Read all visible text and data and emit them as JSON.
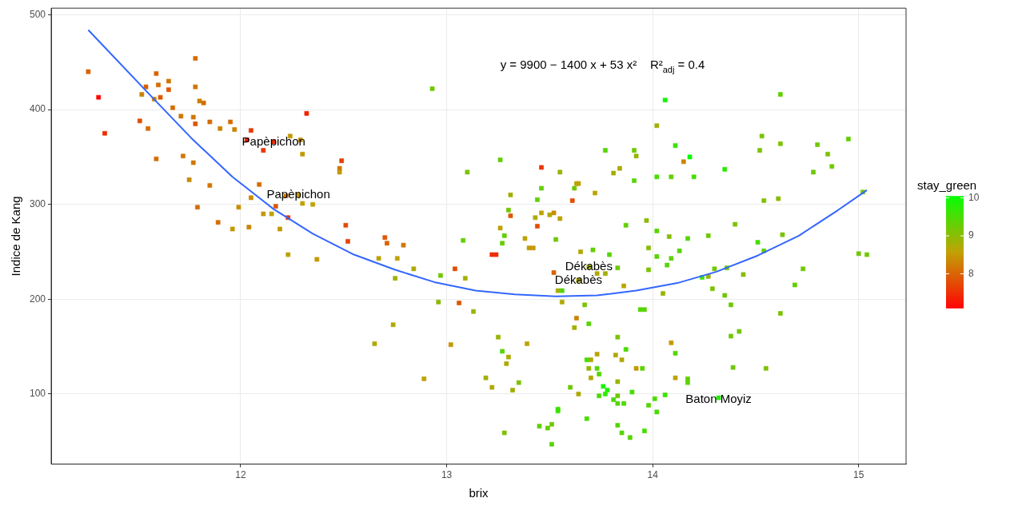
{
  "chart_data": {
    "type": "scatter",
    "xlabel": "brix",
    "ylabel": "Indice de Kang",
    "clabel": "stay_green",
    "xlim": [
      11.08,
      15.23
    ],
    "ylim": [
      26,
      507
    ],
    "xticks": [
      12,
      13,
      14,
      15
    ],
    "yticks": [
      100,
      200,
      300,
      400,
      500
    ],
    "clim": [
      7.1,
      10.05
    ],
    "cticks": [
      8,
      9,
      10
    ],
    "grid": true,
    "annotations": [
      "y = 9900 − 1400 x + 53 x²    R²$_{adj}$ = 0.4",
      {
        "text": "Papèpichon",
        "x": 12.16,
        "y": 366
      },
      {
        "text": "Papèpichon",
        "x": 12.28,
        "y": 310
      },
      {
        "text": "Dékabès",
        "x": 13.69,
        "y": 234
      },
      {
        "text": "Dékabès",
        "x": 13.64,
        "y": 220
      },
      {
        "text": "Baton Moyiz",
        "x": 14.32,
        "y": 94
      }
    ],
    "series": [
      {
        "marker": "square",
        "colors": [
          "#c39800",
          "#a3ae00",
          "#b0a800",
          "#d96200",
          "#ff0000",
          "#ee2b00",
          "#d46c00",
          "#d96200",
          "#cc8200",
          "#d46c00",
          "#d96200",
          "#d07700",
          "#dd5700",
          "#cc8200",
          "#dd5700",
          "#d46c00",
          "#d07700",
          "#d07700",
          "#dd5700",
          "#d46c00",
          "#cc8200",
          "#d46c00",
          "#cc8200",
          "#ea3600",
          "#d07700",
          "#cc8200",
          "#d46c00",
          "#e14c00",
          "#d46c00",
          "#d46c00",
          "#d07700",
          "#d07700",
          "#c78d00",
          "#d07700",
          "#d46c00",
          "#c78d00",
          "#d46c00",
          "#c39800",
          "#cc8200",
          "#c39800",
          "#bda200",
          "#c39800",
          "#ea3600",
          "#dd5700",
          "#d46c00",
          "#c78d00",
          "#bda200",
          "#c39800",
          "#f22100",
          "#ea3600",
          "#f22100",
          "#ee2b00",
          "#c39800",
          "#c78d00",
          "#c39800",
          "#e54100",
          "#d07700",
          "#c39800",
          "#e14c00",
          "#e54100",
          "#bda200",
          "#bda200",
          "#d07700",
          "#dd5700",
          "#d96200",
          "#d07700",
          "#bda200",
          "#bda200",
          "#a3ae00",
          "#b0a800",
          "#b0a800",
          "#6fc800",
          "#e14c00",
          "#a3ae00",
          "#89bb00",
          "#dd5700",
          "#96b500",
          "#7cc200",
          "#62cf00",
          "#ea3600",
          "#96b500",
          "#a3ae00",
          "#62cf00",
          "#62cf00",
          "#6fc800",
          "#dd5700",
          "#b0a800",
          "#bda200",
          "#b0a800",
          "#c78d00",
          "#bda200",
          "#e14c00",
          "#bda200",
          "#62cf00",
          "#62cf00",
          "#bda200",
          "#c39800",
          "#c39800",
          "#ee2b00",
          "#ee2b00",
          "#62cf00",
          "#6fc800",
          "#e14c00",
          "#6fc800",
          "#bda200",
          "#bda200",
          "#bda200",
          "#b0a800",
          "#62cf00",
          "#d96200",
          "#a3ae00",
          "#55d500",
          "#b0a800",
          "#7cc200",
          "#cc8200",
          "#55d500",
          "#a3ae00",
          "#6fc800",
          "#bda200",
          "#b0a800",
          "#96b500",
          "#c39800",
          "#bda200",
          "#55d500",
          "#b0a800",
          "#b0a800",
          "#a3ae00",
          "#b0a800",
          "#a3ae00",
          "#7cc200",
          "#7cc200",
          "#7cc200",
          "#55d500",
          "#55d500",
          "#48dc00",
          "#bda200",
          "#b0a800",
          "#b0a800",
          "#b0a800",
          "#48dc00",
          "#96b500",
          "#55d500",
          "#55d500",
          "#b0a800",
          "#c39800",
          "#55d500",
          "#96b500",
          "#14f500",
          "#21ef00",
          "#2ee800",
          "#48dc00",
          "#6fc800",
          "#48dc00",
          "#55d500",
          "#48dc00",
          "#48dc00",
          "#6fc800",
          "#b0a800",
          "#c39800",
          "#55d500",
          "#bda200",
          "#62cf00",
          "#62cf00",
          "#3be200",
          "#48dc00",
          "#55d500",
          "#48dc00",
          "#3be200",
          "#3be200",
          "#48dc00",
          "#62cf00",
          "#62cf00",
          "#6fc800",
          "#55d500",
          "#55d500",
          "#55d500",
          "#55d500",
          "#48dc00",
          "#21ef00",
          "#14f500",
          "#62cf00",
          "#a3ae00",
          "#3be200",
          "#07fc00",
          "#cc8200",
          "#48dc00",
          "#62cf00",
          "#48dc00",
          "#2ee800",
          "#55d500",
          "#6fc800",
          "#96b500",
          "#a3ae00",
          "#b0a800",
          "#55d500",
          "#7cc200",
          "#7cc200",
          "#7cc200",
          "#6fc800",
          "#7cc200",
          "#6fc800",
          "#6fc800",
          "#62cf00",
          "#7cc200",
          "#89bb00",
          "#6fc800",
          "#62cf00",
          "#89bb00",
          "#55d500",
          "#89bb00",
          "#55d500",
          "#6fc800",
          "#7cc200",
          "#48dc00",
          "#7cc200",
          "#62cf00",
          "#89bb00",
          "#55d500",
          "#62cf00",
          "#55d500",
          "#55d500",
          "#7cc200",
          "#55d500",
          "#6fc800",
          "#a3ae00",
          "#b0a800",
          "#bda200",
          "#96b500",
          "#6fc800",
          "#6fc800",
          "#96b500",
          "#3be200",
          "#89bb00",
          "#7cc200",
          "#6fc800",
          "#6fc800",
          "#7cc200",
          "#6fc800",
          "#62cf00",
          "#6fc800",
          "#6fc800",
          "#6fc800",
          "#6fc800",
          "#6fc800",
          "#7cc200"
        ],
        "x": [
          12.28,
          13.69,
          13.64,
          11.26,
          11.31,
          11.34,
          11.78,
          11.54,
          11.52,
          11.6,
          11.59,
          11.65,
          11.65,
          11.58,
          11.61,
          11.67,
          11.71,
          11.77,
          11.78,
          11.85,
          11.9,
          11.95,
          11.97,
          12.05,
          11.78,
          11.8,
          11.82,
          11.51,
          11.55,
          11.59,
          11.72,
          11.77,
          11.75,
          11.85,
          11.79,
          11.99,
          11.89,
          11.96,
          12.04,
          12.11,
          12.15,
          12.19,
          12.23,
          12.17,
          12.09,
          12.05,
          12.23,
          12.37,
          12.32,
          12.11,
          12.03,
          12.16,
          12.24,
          12.29,
          12.3,
          12.49,
          12.48,
          12.48,
          12.51,
          12.52,
          12.3,
          12.35,
          12.22,
          12.7,
          12.71,
          12.79,
          12.67,
          12.76,
          12.75,
          12.74,
          12.84,
          12.97,
          13.04,
          13.09,
          12.96,
          13.06,
          13.13,
          13.1,
          13.26,
          13.46,
          13.55,
          13.31,
          13.46,
          13.44,
          13.3,
          13.31,
          13.43,
          13.46,
          13.5,
          13.52,
          13.55,
          13.44,
          13.26,
          13.28,
          13.27,
          13.38,
          13.4,
          13.42,
          13.22,
          13.24,
          13.08,
          13.53,
          13.61,
          13.62,
          13.63,
          13.64,
          13.72,
          13.65,
          13.71,
          13.52,
          13.54,
          13.56,
          13.56,
          13.67,
          13.63,
          13.69,
          13.62,
          12.93,
          12.89,
          12.65,
          13.25,
          13.02,
          13.39,
          13.27,
          13.3,
          13.29,
          13.19,
          13.22,
          13.32,
          13.35,
          13.28,
          13.83,
          13.94,
          13.96,
          13.87,
          13.73,
          13.82,
          13.85,
          13.7,
          13.68,
          13.69,
          13.73,
          13.74,
          13.7,
          13.92,
          13.95,
          13.83,
          13.76,
          13.78,
          13.77,
          13.74,
          13.83,
          13.81,
          13.83,
          13.86,
          13.9,
          13.6,
          13.64,
          14.09,
          14.11,
          14.11,
          14.17,
          14.17,
          14.06,
          14.01,
          13.98,
          14.02,
          13.54,
          13.54,
          13.68,
          13.45,
          13.49,
          13.51,
          13.51,
          13.83,
          13.85,
          13.89,
          13.96,
          14.32,
          14.06,
          14.62,
          14.02,
          14.11,
          14.18,
          14.15,
          14.02,
          14.09,
          14.2,
          14.35,
          13.77,
          13.91,
          13.92,
          13.81,
          13.84,
          13.91,
          14.53,
          14.52,
          14.62,
          14.8,
          14.85,
          14.87,
          14.78,
          14.95,
          14.54,
          14.61,
          15.02,
          13.87,
          13.97,
          14.02,
          14.08,
          14.17,
          14.27,
          14.4,
          14.51,
          14.63,
          14.54,
          13.98,
          14.02,
          14.09,
          14.13,
          14.07,
          13.98,
          13.79,
          13.83,
          13.77,
          13.73,
          13.86,
          14.05,
          14.3,
          14.36,
          14.27,
          14.24,
          14.44,
          14.29,
          14.35,
          14.38,
          14.62,
          14.73,
          14.69,
          15.0,
          15.04,
          14.42,
          14.38,
          14.39,
          14.55
        ],
        "values": [
          310,
          234,
          220,
          440,
          413,
          375,
          454,
          424,
          416,
          426,
          438,
          430,
          421,
          411,
          413,
          402,
          393,
          392,
          385,
          387,
          380,
          387,
          379,
          378,
          424,
          409,
          407,
          388,
          380,
          348,
          351,
          344,
          326,
          320,
          297,
          297,
          281,
          274,
          276,
          290,
          290,
          274,
          286,
          298,
          321,
          307,
          247,
          242,
          396,
          357,
          368,
          366,
          372,
          368,
          353,
          346,
          338,
          334,
          278,
          261,
          301,
          300,
          309,
          265,
          259,
          257,
          243,
          243,
          222,
          173,
          232,
          225,
          232,
          222,
          197,
          196,
          187,
          334,
          347,
          339,
          334,
          310,
          317,
          305,
          294,
          288,
          286,
          291,
          289,
          291,
          285,
          277,
          275,
          267,
          259,
          264,
          254,
          254,
          247,
          247,
          262,
          263,
          304,
          317,
          322,
          322,
          312,
          250,
          252,
          228,
          209,
          209,
          197,
          194,
          180,
          174,
          170,
          422,
          116,
          153,
          160,
          152,
          153,
          145,
          139,
          132,
          117,
          107,
          104,
          112,
          59,
          160,
          189,
          189,
          147,
          142,
          141,
          136,
          136,
          136,
          127,
          127,
          121,
          117,
          127,
          127,
          113,
          108,
          104,
          100,
          98,
          98,
          94,
          90,
          90,
          102,
          107,
          100,
          154,
          143,
          117,
          116,
          112,
          99,
          95,
          88,
          81,
          84,
          82,
          74,
          66,
          64,
          68,
          47,
          67,
          59,
          54,
          61,
          96,
          410,
          416,
          383,
          362,
          350,
          345,
          329,
          329,
          329,
          337,
          357,
          357,
          351,
          333,
          338,
          325,
          372,
          357,
          364,
          363,
          353,
          340,
          334,
          369,
          304,
          306,
          313,
          278,
          283,
          272,
          266,
          264,
          267,
          279,
          260,
          268,
          251,
          254,
          245,
          243,
          251,
          236,
          231,
          247,
          233,
          227,
          227,
          214,
          206,
          232,
          233,
          224,
          223,
          226,
          211,
          204,
          194,
          185,
          232,
          215,
          248,
          247,
          166,
          161,
          128,
          127
        ],
        "cvalues": [
          8.5,
          8.8,
          8.7,
          8.0,
          7.1,
          7.5,
          8.1,
          8.0,
          8.3,
          8.1,
          8.0,
          8.2,
          7.9,
          8.3,
          7.9,
          8.1,
          8.2,
          8.2,
          7.9,
          8.1,
          8.3,
          8.1,
          8.3,
          7.6,
          8.2,
          8.3,
          8.1,
          7.8,
          8.1,
          8.1,
          8.2,
          8.2,
          8.4,
          8.2,
          8.1,
          8.4,
          8.1,
          8.5,
          8.3,
          8.5,
          8.6,
          8.5,
          7.6,
          7.9,
          8.1,
          8.4,
          8.6,
          8.5,
          7.4,
          7.6,
          7.4,
          7.5,
          8.5,
          8.4,
          8.5,
          7.7,
          8.2,
          8.5,
          7.8,
          7.7,
          8.6,
          8.6,
          8.2,
          7.9,
          8.0,
          8.2,
          8.6,
          8.6,
          8.8,
          8.7,
          8.7,
          9.2,
          7.8,
          8.8,
          9.0,
          7.9,
          8.9,
          9.1,
          9.3,
          7.6,
          8.9,
          8.8,
          9.3,
          9.3,
          9.2,
          7.9,
          8.7,
          8.6,
          8.7,
          8.4,
          8.6,
          7.8,
          8.6,
          9.3,
          9.3,
          8.6,
          8.5,
          8.5,
          7.5,
          7.5,
          9.3,
          9.2,
          7.8,
          9.2,
          8.6,
          8.6,
          8.6,
          8.7,
          9.3,
          8.0,
          8.8,
          9.4,
          8.7,
          9.1,
          8.3,
          9.4,
          8.8,
          9.2,
          8.6,
          8.7,
          8.9,
          8.5,
          8.6,
          9.4,
          8.7,
          8.7,
          8.8,
          8.7,
          8.8,
          9.1,
          9.1,
          9.1,
          9.4,
          9.4,
          9.5,
          8.6,
          8.7,
          8.7,
          8.7,
          9.5,
          8.9,
          9.4,
          9.4,
          8.7,
          8.5,
          9.4,
          8.9,
          9.9,
          9.8,
          9.7,
          9.5,
          9.2,
          9.5,
          9.4,
          9.5,
          9.5,
          9.2,
          8.7,
          8.5,
          9.4,
          8.6,
          9.3,
          9.3,
          9.6,
          9.5,
          9.4,
          9.5,
          9.6,
          9.6,
          9.5,
          9.3,
          9.3,
          9.2,
          9.4,
          9.4,
          9.4,
          9.4,
          9.5,
          9.8,
          9.9,
          9.3,
          8.8,
          9.6,
          10.0,
          8.3,
          9.5,
          9.3,
          9.5,
          9.7,
          9.4,
          9.2,
          8.9,
          8.8,
          8.7,
          9.4,
          9.1,
          9.1,
          9.1,
          9.2,
          9.1,
          9.2,
          9.2,
          9.3,
          9.1,
          9.0,
          9.2,
          9.3,
          9.0,
          9.4,
          9.0,
          9.4,
          9.2,
          9.1,
          9.5,
          9.1,
          9.3,
          9.0,
          9.4,
          9.3,
          9.4,
          9.4,
          9.1,
          9.4,
          9.2,
          8.8,
          8.7,
          8.6,
          8.9,
          9.2,
          9.2,
          8.9,
          9.6,
          9.0,
          9.1,
          9.2,
          9.2,
          9.1,
          9.2,
          9.3,
          9.2,
          9.2,
          9.2,
          9.2,
          9.2,
          9.1
        ]
      },
      {
        "type": "line",
        "color": "#3366ff",
        "marker": "none",
        "x": [
          11.26,
          11.57,
          11.76,
          11.96,
          12.16,
          12.35,
          12.55,
          12.75,
          12.94,
          13.14,
          13.33,
          13.53,
          13.73,
          13.92,
          14.12,
          14.31,
          14.51,
          14.71,
          14.9,
          15.04
        ],
        "values": [
          484,
          413,
          370,
          329,
          295,
          269,
          247,
          231,
          218,
          209,
          205,
          203,
          204,
          209,
          217,
          229,
          246,
          267,
          294,
          315
        ]
      }
    ]
  }
}
